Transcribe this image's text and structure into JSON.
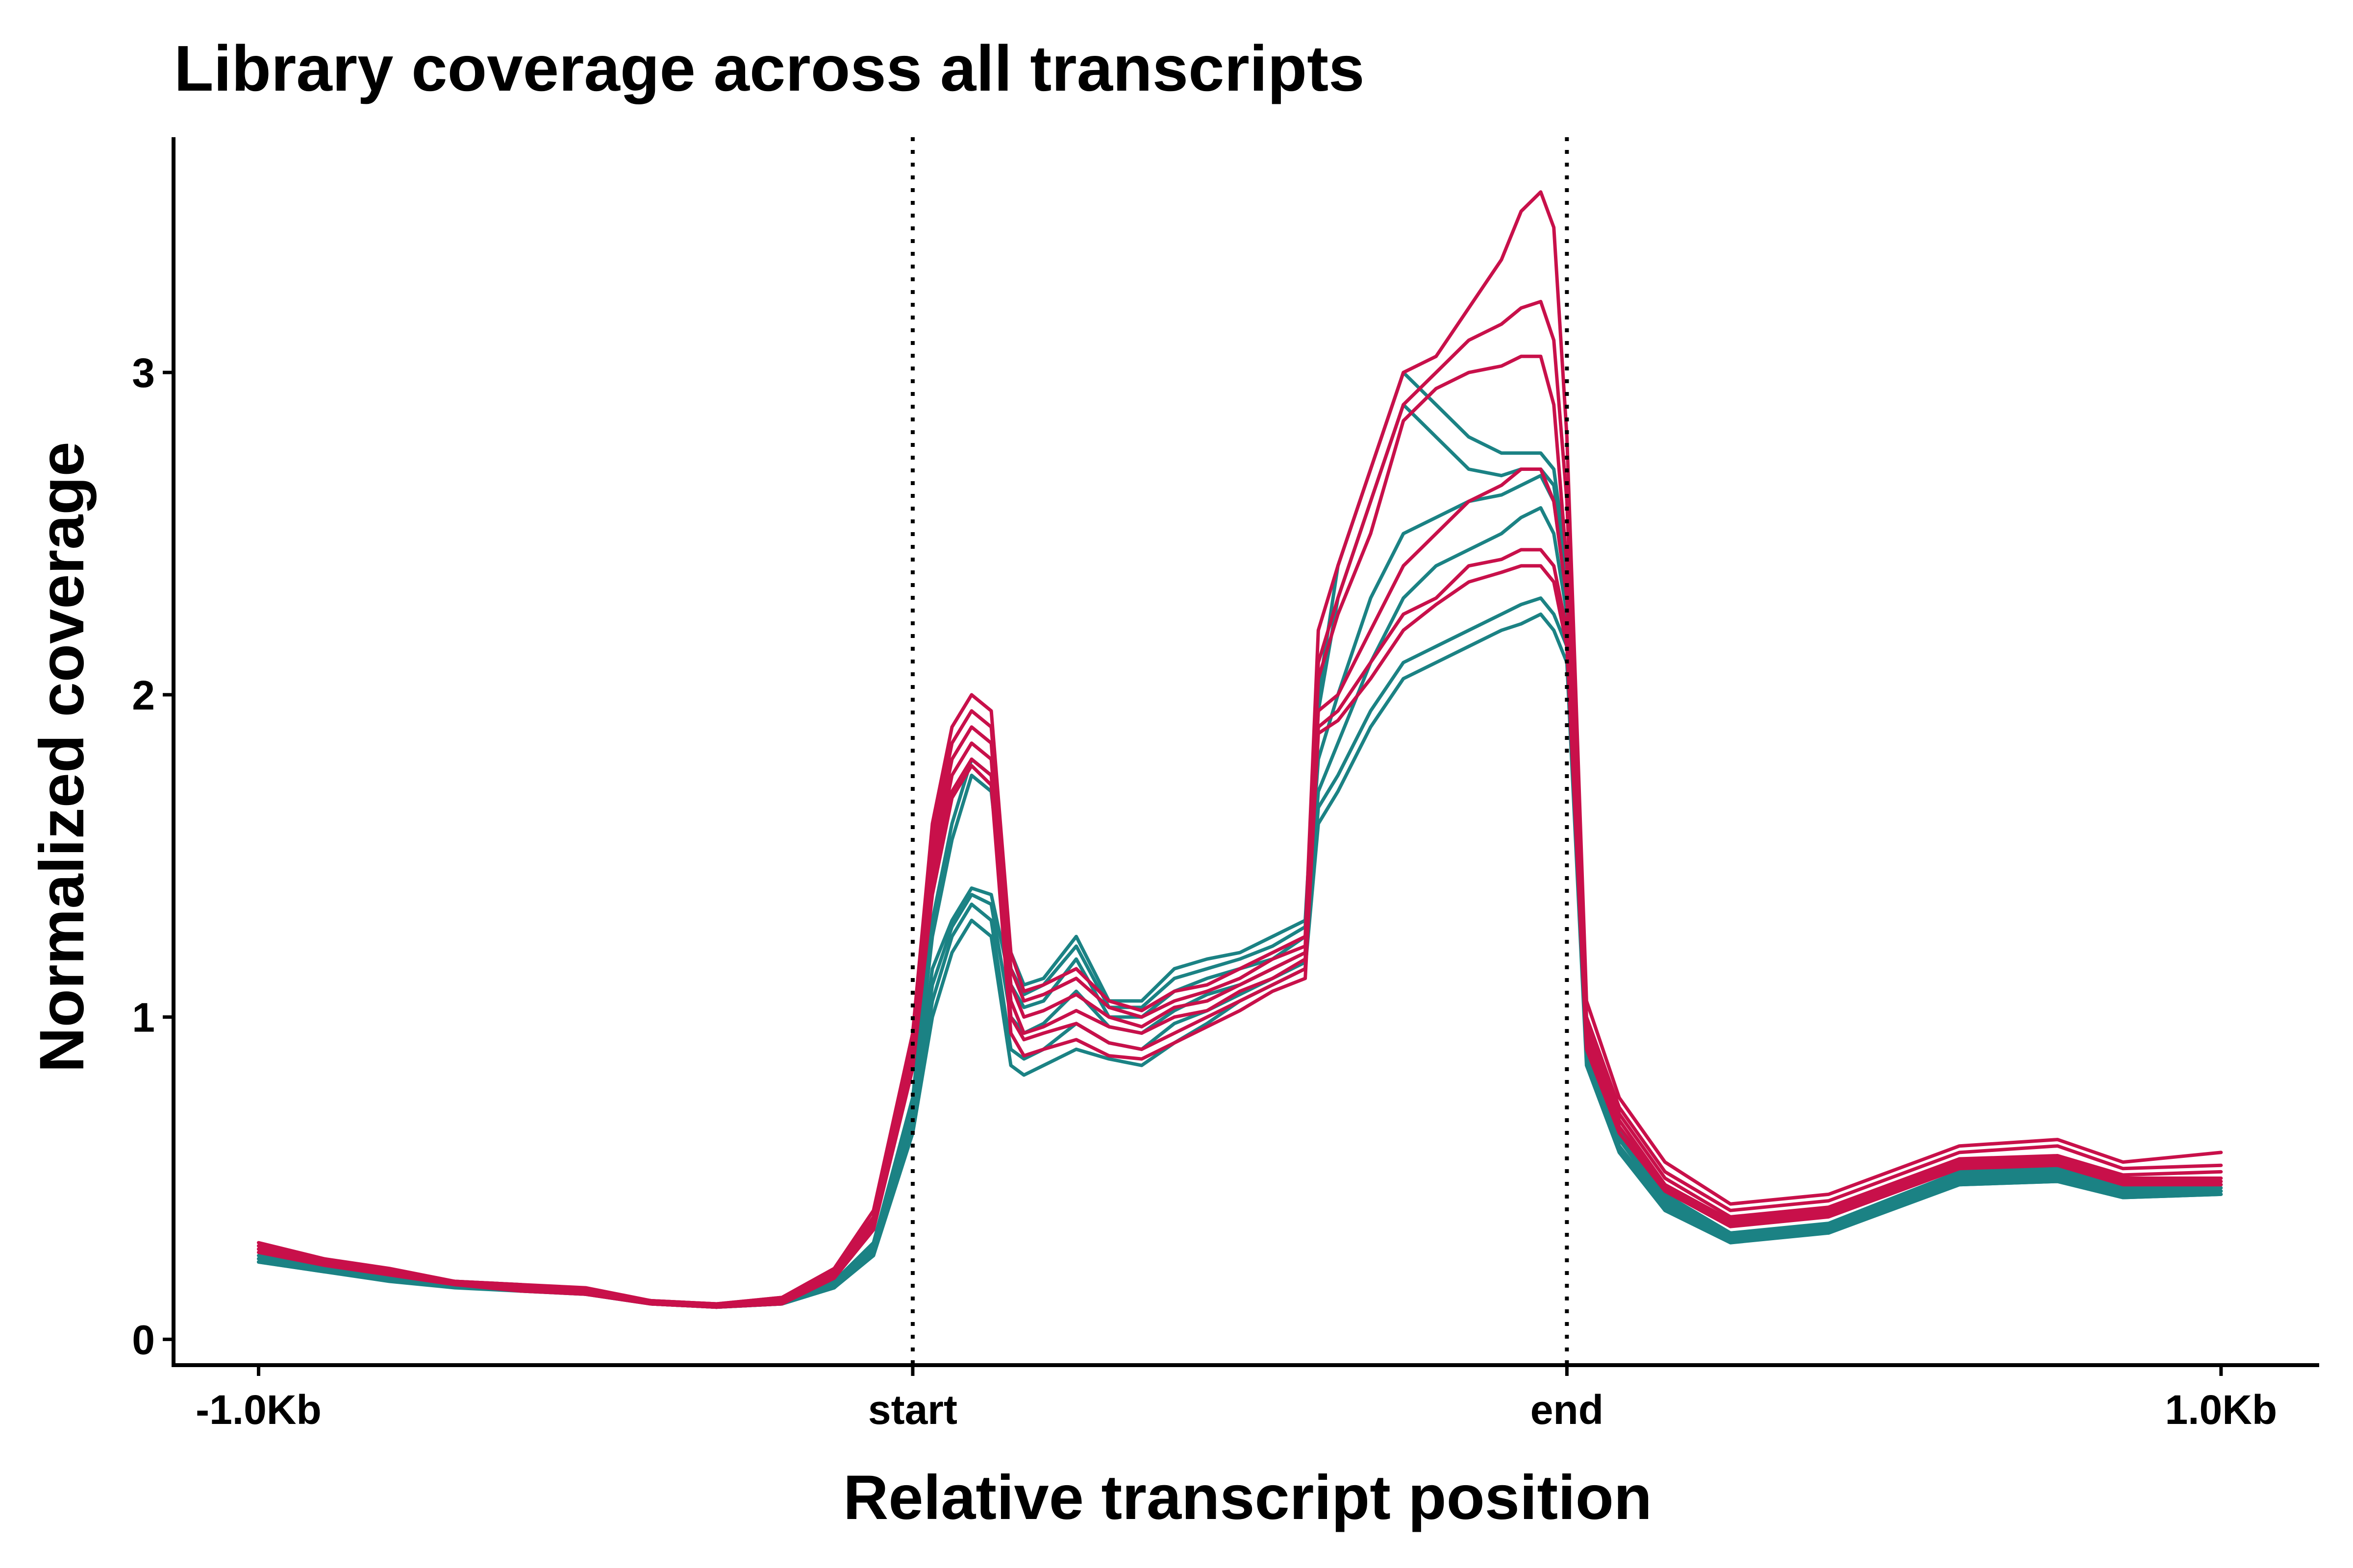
{
  "chart_data": {
    "type": "line",
    "title": "Library coverage across all transcripts",
    "xlabel": "Relative transcript position",
    "ylabel": "Normalized coverage",
    "x_ticks": [
      {
        "label": "-1.0Kb",
        "value": -1.0
      },
      {
        "label": "start",
        "value": 0.0
      },
      {
        "label": "end",
        "value": 1.0
      },
      {
        "label": "1.0Kb",
        "value": 2.0
      }
    ],
    "y_ticks": [
      {
        "label": "0",
        "value": 0
      },
      {
        "label": "1",
        "value": 1
      },
      {
        "label": "2",
        "value": 2
      },
      {
        "label": "3",
        "value": 3
      }
    ],
    "xlim": [
      -1.13,
      2.15
    ],
    "ylim": [
      -0.08,
      3.73
    ],
    "reference_lines_x": [
      0.0,
      1.0
    ],
    "grid": false,
    "legend": "none",
    "colors": {
      "group_a": "#C8104A",
      "group_b": "#1B8284"
    },
    "x": [
      -1.0,
      -0.9,
      -0.8,
      -0.7,
      -0.6,
      -0.5,
      -0.4,
      -0.3,
      -0.2,
      -0.12,
      -0.06,
      0.0,
      0.03,
      0.06,
      0.09,
      0.12,
      0.15,
      0.17,
      0.2,
      0.25,
      0.3,
      0.35,
      0.4,
      0.45,
      0.5,
      0.55,
      0.6,
      0.62,
      0.65,
      0.7,
      0.75,
      0.8,
      0.85,
      0.9,
      0.93,
      0.96,
      0.98,
      1.0,
      1.03,
      1.08,
      1.15,
      1.25,
      1.4,
      1.6,
      1.75,
      1.85,
      2.0
    ],
    "series": [
      {
        "group": "group_a",
        "values": [
          0.3,
          0.25,
          0.22,
          0.18,
          0.17,
          0.16,
          0.12,
          0.11,
          0.13,
          0.22,
          0.4,
          0.95,
          1.6,
          1.9,
          2.0,
          1.95,
          1.2,
          1.08,
          1.1,
          1.15,
          1.05,
          1.02,
          1.08,
          1.1,
          1.15,
          1.2,
          1.25,
          2.2,
          2.4,
          2.7,
          3.0,
          3.05,
          3.2,
          3.35,
          3.5,
          3.56,
          3.45,
          2.8,
          1.05,
          0.75,
          0.55,
          0.42,
          0.45,
          0.6,
          0.62,
          0.55,
          0.58
        ]
      },
      {
        "group": "group_a",
        "values": [
          0.29,
          0.25,
          0.21,
          0.18,
          0.17,
          0.15,
          0.12,
          0.11,
          0.13,
          0.21,
          0.38,
          0.92,
          1.55,
          1.85,
          1.95,
          1.9,
          1.15,
          1.05,
          1.07,
          1.12,
          1.03,
          1.0,
          1.05,
          1.08,
          1.12,
          1.18,
          1.22,
          2.1,
          2.3,
          2.6,
          2.9,
          3.0,
          3.1,
          3.15,
          3.2,
          3.22,
          3.1,
          2.6,
          1.0,
          0.72,
          0.52,
          0.4,
          0.43,
          0.58,
          0.6,
          0.53,
          0.54
        ]
      },
      {
        "group": "group_a",
        "values": [
          0.29,
          0.24,
          0.21,
          0.18,
          0.16,
          0.15,
          0.12,
          0.11,
          0.12,
          0.2,
          0.37,
          0.9,
          1.5,
          1.8,
          1.9,
          1.85,
          1.1,
          1.0,
          1.02,
          1.07,
          1.0,
          0.97,
          1.03,
          1.05,
          1.1,
          1.15,
          1.2,
          2.05,
          2.25,
          2.5,
          2.85,
          2.95,
          3.0,
          3.02,
          3.05,
          3.05,
          2.9,
          2.4,
          0.98,
          0.7,
          0.5,
          0.38,
          0.41,
          0.56,
          0.57,
          0.51,
          0.52
        ]
      },
      {
        "group": "group_a",
        "values": [
          0.28,
          0.24,
          0.21,
          0.17,
          0.16,
          0.15,
          0.11,
          0.1,
          0.12,
          0.2,
          0.36,
          0.88,
          1.45,
          1.75,
          1.85,
          1.8,
          1.05,
          0.95,
          0.97,
          1.02,
          0.97,
          0.95,
          1.0,
          1.02,
          1.08,
          1.12,
          1.18,
          1.95,
          2.0,
          2.2,
          2.4,
          2.5,
          2.6,
          2.65,
          2.7,
          2.7,
          2.6,
          2.3,
          0.95,
          0.68,
          0.48,
          0.37,
          0.4,
          0.55,
          0.56,
          0.5,
          0.5
        ]
      },
      {
        "group": "group_a",
        "values": [
          0.28,
          0.24,
          0.2,
          0.17,
          0.16,
          0.14,
          0.11,
          0.1,
          0.12,
          0.19,
          0.35,
          0.86,
          1.4,
          1.7,
          1.8,
          1.75,
          1.0,
          0.93,
          0.95,
          0.98,
          0.92,
          0.9,
          0.95,
          1.0,
          1.05,
          1.1,
          1.15,
          1.9,
          1.95,
          2.1,
          2.25,
          2.3,
          2.4,
          2.42,
          2.45,
          2.45,
          2.4,
          2.2,
          0.93,
          0.66,
          0.47,
          0.36,
          0.39,
          0.54,
          0.55,
          0.49,
          0.49
        ]
      },
      {
        "group": "group_a",
        "values": [
          0.27,
          0.23,
          0.2,
          0.17,
          0.15,
          0.14,
          0.11,
          0.1,
          0.11,
          0.19,
          0.34,
          0.84,
          1.38,
          1.68,
          1.78,
          1.72,
          0.95,
          0.88,
          0.9,
          0.93,
          0.88,
          0.87,
          0.92,
          0.97,
          1.02,
          1.08,
          1.12,
          1.88,
          1.92,
          2.05,
          2.2,
          2.28,
          2.35,
          2.38,
          2.4,
          2.4,
          2.35,
          2.15,
          0.9,
          0.64,
          0.46,
          0.35,
          0.38,
          0.53,
          0.54,
          0.48,
          0.48
        ]
      },
      {
        "group": "group_b",
        "values": [
          0.26,
          0.23,
          0.2,
          0.18,
          0.17,
          0.15,
          0.12,
          0.1,
          0.12,
          0.18,
          0.3,
          0.75,
          1.3,
          1.6,
          1.8,
          1.75,
          1.2,
          1.1,
          1.12,
          1.25,
          1.05,
          1.05,
          1.15,
          1.18,
          1.2,
          1.25,
          1.3,
          2.0,
          2.4,
          2.7,
          3.0,
          2.9,
          2.8,
          2.75,
          2.75,
          2.75,
          2.7,
          2.4,
          0.95,
          0.65,
          0.45,
          0.33,
          0.36,
          0.52,
          0.53,
          0.47,
          0.48
        ]
      },
      {
        "group": "group_b",
        "values": [
          0.25,
          0.22,
          0.2,
          0.17,
          0.16,
          0.15,
          0.11,
          0.1,
          0.12,
          0.18,
          0.29,
          0.72,
          1.25,
          1.55,
          1.75,
          1.7,
          1.15,
          1.07,
          1.1,
          1.22,
          1.03,
          1.03,
          1.12,
          1.15,
          1.18,
          1.22,
          1.28,
          1.95,
          2.3,
          2.6,
          2.9,
          2.8,
          2.7,
          2.68,
          2.7,
          2.7,
          2.65,
          2.35,
          0.92,
          0.63,
          0.44,
          0.33,
          0.35,
          0.51,
          0.52,
          0.46,
          0.47
        ]
      },
      {
        "group": "group_b",
        "values": [
          0.25,
          0.22,
          0.19,
          0.17,
          0.16,
          0.14,
          0.11,
          0.1,
          0.11,
          0.17,
          0.28,
          0.7,
          1.15,
          1.3,
          1.4,
          1.38,
          1.1,
          1.03,
          1.05,
          1.18,
          1.0,
          1.0,
          1.08,
          1.12,
          1.15,
          1.18,
          1.25,
          1.8,
          2.0,
          2.3,
          2.5,
          2.55,
          2.6,
          2.62,
          2.65,
          2.68,
          2.6,
          2.3,
          0.9,
          0.62,
          0.43,
          0.32,
          0.35,
          0.5,
          0.51,
          0.46,
          0.46
        ]
      },
      {
        "group": "group_b",
        "values": [
          0.24,
          0.22,
          0.19,
          0.17,
          0.16,
          0.14,
          0.11,
          0.1,
          0.11,
          0.17,
          0.28,
          0.68,
          1.1,
          1.28,
          1.38,
          1.35,
          1.0,
          0.95,
          0.98,
          1.08,
          0.97,
          0.95,
          1.02,
          1.07,
          1.1,
          1.15,
          1.2,
          1.7,
          1.85,
          2.1,
          2.3,
          2.4,
          2.45,
          2.5,
          2.55,
          2.58,
          2.5,
          2.25,
          0.88,
          0.6,
          0.42,
          0.31,
          0.34,
          0.49,
          0.5,
          0.45,
          0.46
        ]
      },
      {
        "group": "group_b",
        "values": [
          0.24,
          0.21,
          0.19,
          0.17,
          0.15,
          0.14,
          0.11,
          0.1,
          0.11,
          0.16,
          0.27,
          0.66,
          1.05,
          1.25,
          1.35,
          1.3,
          0.9,
          0.87,
          0.9,
          0.98,
          0.92,
          0.9,
          0.98,
          1.02,
          1.07,
          1.12,
          1.17,
          1.65,
          1.75,
          1.95,
          2.1,
          2.15,
          2.2,
          2.25,
          2.28,
          2.3,
          2.25,
          2.15,
          0.86,
          0.59,
          0.41,
          0.31,
          0.33,
          0.48,
          0.49,
          0.44,
          0.45
        ]
      },
      {
        "group": "group_b",
        "values": [
          0.24,
          0.21,
          0.18,
          0.16,
          0.15,
          0.14,
          0.11,
          0.1,
          0.11,
          0.16,
          0.26,
          0.64,
          1.0,
          1.2,
          1.3,
          1.25,
          0.85,
          0.82,
          0.85,
          0.9,
          0.87,
          0.85,
          0.92,
          0.98,
          1.05,
          1.1,
          1.15,
          1.6,
          1.7,
          1.9,
          2.05,
          2.1,
          2.15,
          2.2,
          2.22,
          2.25,
          2.2,
          2.1,
          0.85,
          0.58,
          0.4,
          0.3,
          0.33,
          0.48,
          0.49,
          0.44,
          0.45
        ]
      }
    ]
  }
}
